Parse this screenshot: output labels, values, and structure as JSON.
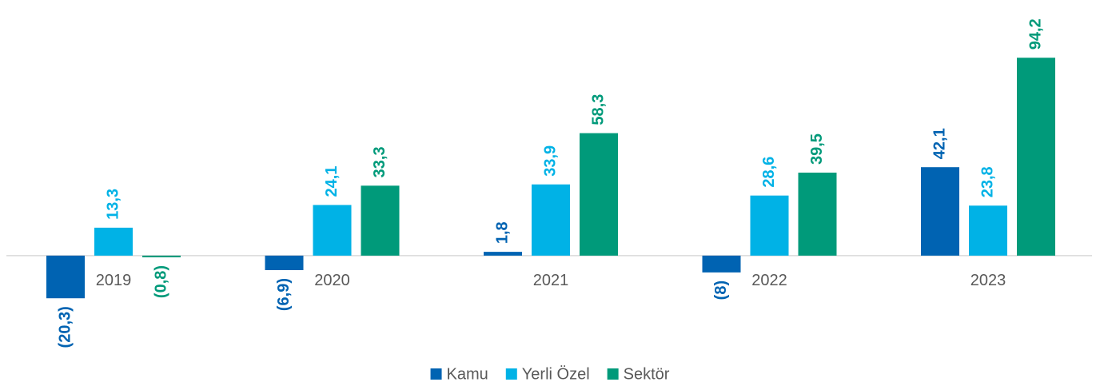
{
  "chart_data": {
    "type": "bar",
    "categories": [
      "2019",
      "2020",
      "2021",
      "2022",
      "2023"
    ],
    "series": [
      {
        "name": "Kamu",
        "color": "#0063b2",
        "values": [
          -20.3,
          -6.9,
          1.8,
          -8,
          42.1
        ],
        "value_labels": [
          "(20,3)",
          "(6,9)",
          "1,8",
          "(8)",
          "42,1"
        ]
      },
      {
        "name": "Yerli Özel",
        "color": "#00b2e6",
        "values": [
          13.3,
          24.1,
          33.9,
          28.6,
          23.8
        ],
        "value_labels": [
          "13,3",
          "24,1",
          "33,9",
          "28,6",
          "23,8"
        ]
      },
      {
        "name": "Sektör",
        "color": "#009a7a",
        "values": [
          -0.8,
          33.3,
          58.3,
          39.5,
          94.2
        ],
        "value_labels": [
          "(0,8)",
          "33,3",
          "58,3",
          "39,5",
          "94,2"
        ]
      }
    ],
    "ylim": [
      -40,
      100
    ],
    "legend": "bottom"
  }
}
